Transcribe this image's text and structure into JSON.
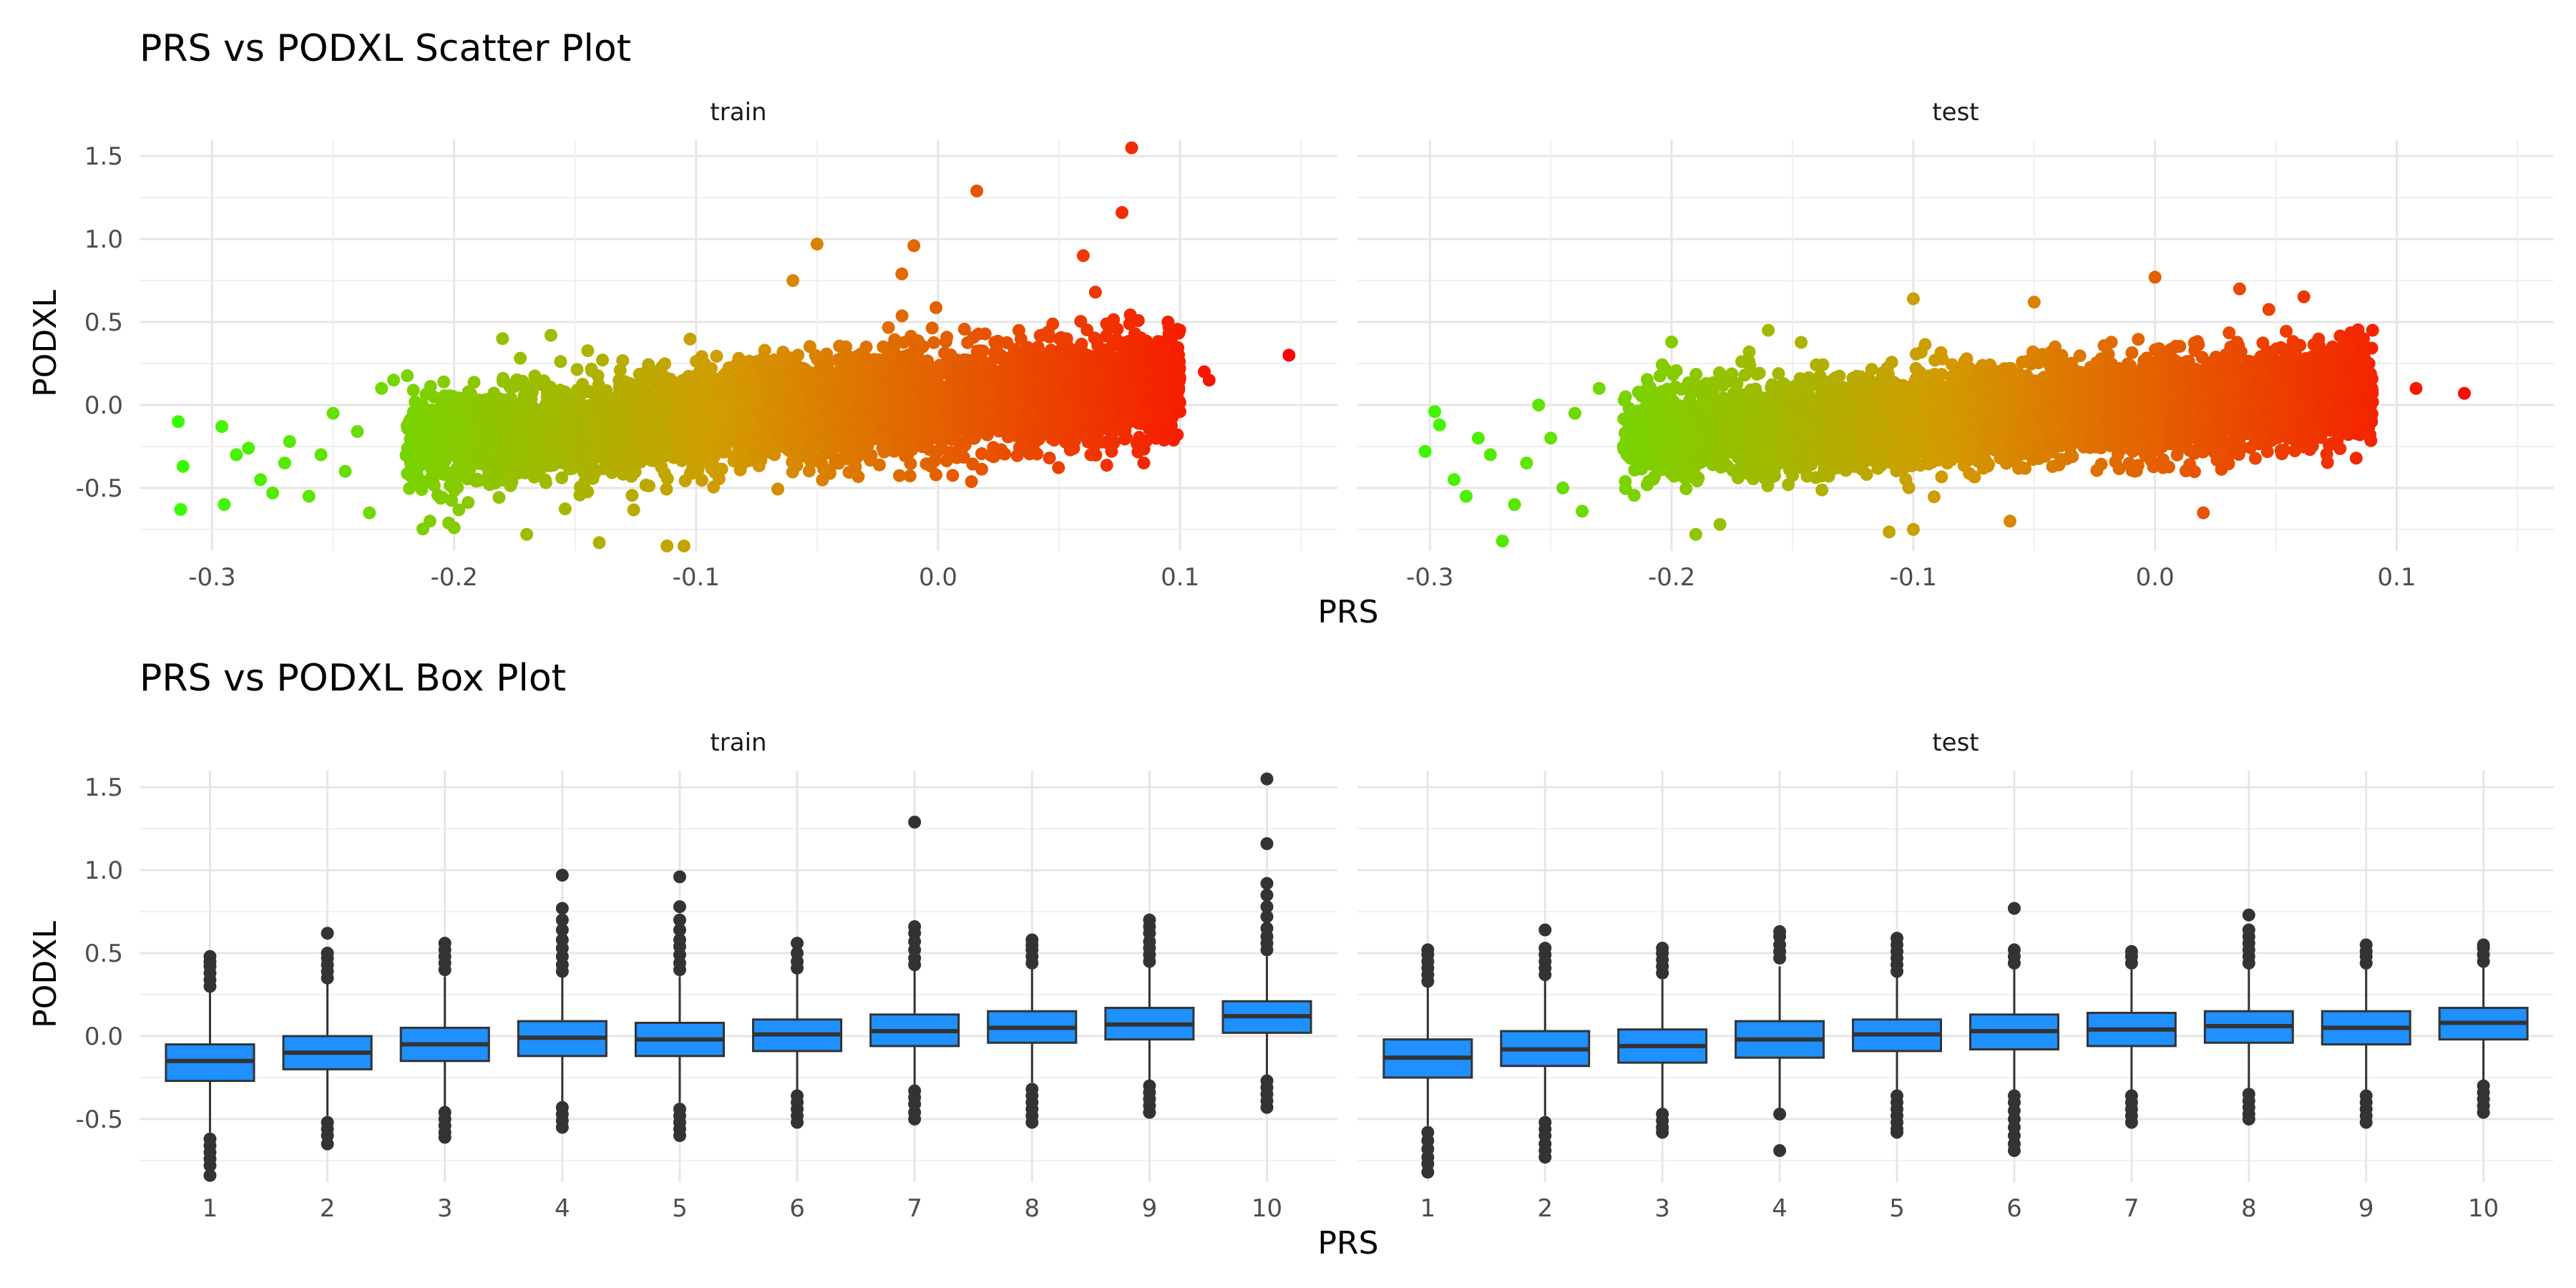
{
  "chart_data": [
    {
      "type": "scatter",
      "title": "PRS vs PODXL Scatter Plot",
      "xlabel": "PRS",
      "ylabel": "PODXL",
      "facets": [
        "train",
        "test"
      ],
      "xlim": [
        -0.33,
        0.165
      ],
      "ylim": [
        -0.88,
        1.6
      ],
      "x_ticks": [
        -0.3,
        -0.2,
        -0.1,
        0.0,
        0.1
      ],
      "x_tick_labels": [
        "-0.3",
        "-0.2",
        "-0.1",
        "0.0",
        "0.1"
      ],
      "y_ticks": [
        -0.5,
        0.0,
        0.5,
        1.0,
        1.5
      ],
      "y_tick_labels": [
        "-0.5",
        "0.0",
        "0.5",
        "1.0",
        "1.5"
      ],
      "grid": true,
      "legend": "none",
      "color_gradient": {
        "low": "#33ff00",
        "mid": "#d39a00",
        "high": "#ff0000",
        "range": [
          -0.32,
          0.145
        ]
      },
      "bulk": {
        "train": {
          "n": 5000,
          "x_range": [
            -0.22,
            0.1
          ],
          "trend_slope": 1.15,
          "trend_at_zero": 0.02,
          "sd": 0.15
        },
        "test": {
          "n": 5000,
          "x_range": [
            -0.22,
            0.09
          ],
          "trend_slope": 0.85,
          "trend_at_zero": 0.0,
          "sd": 0.14
        }
      },
      "series": [
        {
          "facet": "train",
          "points": [
            [
              -0.314,
              -0.1
            ],
            [
              -0.312,
              -0.37
            ],
            [
              -0.313,
              -0.63
            ],
            [
              -0.296,
              -0.13
            ],
            [
              -0.295,
              -0.6
            ],
            [
              -0.29,
              -0.3
            ],
            [
              -0.285,
              -0.26
            ],
            [
              -0.28,
              -0.45
            ],
            [
              -0.275,
              -0.53
            ],
            [
              -0.27,
              -0.35
            ],
            [
              -0.268,
              -0.22
            ],
            [
              -0.26,
              -0.55
            ],
            [
              -0.255,
              -0.3
            ],
            [
              -0.25,
              -0.05
            ],
            [
              -0.245,
              -0.4
            ],
            [
              -0.24,
              -0.16
            ],
            [
              -0.235,
              -0.65
            ],
            [
              -0.23,
              0.1
            ],
            [
              -0.225,
              0.15
            ],
            [
              -0.21,
              -0.7
            ],
            [
              -0.2,
              -0.74
            ],
            [
              -0.18,
              0.4
            ],
            [
              -0.17,
              -0.78
            ],
            [
              -0.16,
              0.42
            ],
            [
              -0.14,
              -0.83
            ],
            [
              -0.112,
              -0.85
            ],
            [
              -0.105,
              -0.85
            ],
            [
              -0.06,
              0.75
            ],
            [
              -0.05,
              0.97
            ],
            [
              -0.015,
              0.79
            ],
            [
              -0.01,
              0.96
            ],
            [
              0.016,
              1.29
            ],
            [
              0.06,
              0.9
            ],
            [
              0.065,
              0.68
            ],
            [
              0.076,
              1.16
            ],
            [
              0.08,
              1.55
            ],
            [
              0.085,
              -0.35
            ],
            [
              0.095,
              0.5
            ],
            [
              0.11,
              0.2
            ],
            [
              0.112,
              0.15
            ],
            [
              0.145,
              0.3
            ]
          ]
        },
        {
          "facet": "test",
          "points": [
            [
              -0.302,
              -0.28
            ],
            [
              -0.298,
              -0.04
            ],
            [
              -0.296,
              -0.12
            ],
            [
              -0.29,
              -0.45
            ],
            [
              -0.285,
              -0.55
            ],
            [
              -0.28,
              -0.2
            ],
            [
              -0.275,
              -0.3
            ],
            [
              -0.27,
              -0.82
            ],
            [
              -0.265,
              -0.6
            ],
            [
              -0.26,
              -0.35
            ],
            [
              -0.255,
              0.0
            ],
            [
              -0.25,
              -0.2
            ],
            [
              -0.245,
              -0.5
            ],
            [
              -0.24,
              -0.05
            ],
            [
              -0.237,
              -0.64
            ],
            [
              -0.23,
              0.1
            ],
            [
              -0.22,
              -0.25
            ],
            [
              -0.2,
              0.38
            ],
            [
              -0.19,
              -0.78
            ],
            [
              -0.18,
              -0.72
            ],
            [
              -0.16,
              0.45
            ],
            [
              -0.1,
              0.64
            ],
            [
              -0.1,
              -0.75
            ],
            [
              -0.05,
              0.62
            ],
            [
              -0.06,
              -0.7
            ],
            [
              0.0,
              0.77
            ],
            [
              0.02,
              -0.65
            ],
            [
              0.035,
              0.7
            ],
            [
              0.09,
              0.45
            ],
            [
              0.108,
              0.1
            ],
            [
              0.128,
              0.07
            ]
          ]
        }
      ]
    },
    {
      "type": "box",
      "title": "PRS vs PODXL Box Plot",
      "xlabel": "PRS",
      "ylabel": "PODXL",
      "facets": [
        "train",
        "test"
      ],
      "categories": [
        "1",
        "2",
        "3",
        "4",
        "5",
        "6",
        "7",
        "8",
        "9",
        "10"
      ],
      "ylim": [
        -0.88,
        1.6
      ],
      "y_ticks": [
        -0.5,
        0.0,
        0.5,
        1.0,
        1.5
      ],
      "y_tick_labels": [
        "-0.5",
        "0.0",
        "0.5",
        "1.0",
        "1.5"
      ],
      "grid": true,
      "legend": "none",
      "box_color": "#1e90ff",
      "series": [
        {
          "facet": "train",
          "boxes": [
            {
              "q1": -0.27,
              "median": -0.15,
              "q3": -0.05,
              "lower": -0.58,
              "upper": 0.28,
              "outliers": [
                0.3,
                0.34,
                0.38,
                0.42,
                0.45,
                0.48,
                -0.62,
                -0.66,
                -0.7,
                -0.74,
                -0.78,
                -0.84
              ]
            },
            {
              "q1": -0.2,
              "median": -0.1,
              "q3": 0.0,
              "lower": -0.48,
              "upper": 0.32,
              "outliers": [
                0.35,
                0.39,
                0.43,
                0.47,
                0.5,
                0.62,
                -0.52,
                -0.56,
                -0.6,
                -0.65
              ]
            },
            {
              "q1": -0.15,
              "median": -0.05,
              "q3": 0.05,
              "lower": -0.43,
              "upper": 0.36,
              "outliers": [
                0.4,
                0.44,
                0.48,
                0.52,
                0.56,
                -0.46,
                -0.5,
                -0.54,
                -0.58,
                -0.61
              ]
            },
            {
              "q1": -0.12,
              "median": -0.01,
              "q3": 0.09,
              "lower": -0.4,
              "upper": 0.36,
              "outliers": [
                0.39,
                0.43,
                0.48,
                0.53,
                0.58,
                0.64,
                0.7,
                0.77,
                0.97,
                -0.43,
                -0.47,
                -0.51,
                -0.55
              ]
            },
            {
              "q1": -0.12,
              "median": -0.02,
              "q3": 0.08,
              "lower": -0.4,
              "upper": 0.36,
              "outliers": [
                0.4,
                0.44,
                0.49,
                0.54,
                0.58,
                0.64,
                0.7,
                0.78,
                0.96,
                -0.44,
                -0.48,
                -0.52,
                -0.56,
                -0.6
              ]
            },
            {
              "q1": -0.09,
              "median": 0.01,
              "q3": 0.1,
              "lower": -0.33,
              "upper": 0.38,
              "outliers": [
                0.41,
                0.45,
                0.5,
                0.56,
                -0.36,
                -0.4,
                -0.44,
                -0.48,
                -0.52
              ]
            },
            {
              "q1": -0.06,
              "median": 0.03,
              "q3": 0.13,
              "lower": -0.3,
              "upper": 0.4,
              "outliers": [
                0.43,
                0.47,
                0.52,
                0.57,
                0.62,
                0.66,
                1.29,
                -0.33,
                -0.37,
                -0.41,
                -0.46,
                -0.5
              ]
            },
            {
              "q1": -0.04,
              "median": 0.05,
              "q3": 0.15,
              "lower": -0.28,
              "upper": 0.41,
              "outliers": [
                0.44,
                0.48,
                0.52,
                0.55,
                0.58,
                -0.32,
                -0.36,
                -0.4,
                -0.44,
                -0.48,
                -0.52
              ]
            },
            {
              "q1": -0.02,
              "median": 0.07,
              "q3": 0.17,
              "lower": -0.27,
              "upper": 0.42,
              "outliers": [
                0.45,
                0.49,
                0.53,
                0.57,
                0.62,
                0.66,
                0.7,
                -0.3,
                -0.34,
                -0.38,
                -0.42,
                -0.46
              ]
            },
            {
              "q1": 0.02,
              "median": 0.12,
              "q3": 0.21,
              "lower": -0.25,
              "upper": 0.48,
              "outliers": [
                0.52,
                0.56,
                0.6,
                0.65,
                0.72,
                0.78,
                0.85,
                0.92,
                1.16,
                1.55,
                -0.27,
                -0.31,
                -0.35,
                -0.39,
                -0.43
              ]
            }
          ]
        },
        {
          "facet": "test",
          "boxes": [
            {
              "q1": -0.25,
              "median": -0.13,
              "q3": -0.02,
              "lower": -0.54,
              "upper": 0.3,
              "outliers": [
                0.33,
                0.37,
                0.41,
                0.45,
                0.49,
                0.52,
                -0.58,
                -0.63,
                -0.68,
                -0.73,
                -0.77,
                -0.82
              ]
            },
            {
              "q1": -0.18,
              "median": -0.08,
              "q3": 0.03,
              "lower": -0.48,
              "upper": 0.34,
              "outliers": [
                0.37,
                0.41,
                0.45,
                0.49,
                0.53,
                0.64,
                -0.52,
                -0.56,
                -0.6,
                -0.65,
                -0.69,
                -0.73
              ]
            },
            {
              "q1": -0.16,
              "median": -0.06,
              "q3": 0.04,
              "lower": -0.44,
              "upper": 0.34,
              "outliers": [
                0.38,
                0.42,
                0.46,
                0.5,
                0.53,
                -0.47,
                -0.51,
                -0.55,
                -0.58
              ]
            },
            {
              "q1": -0.13,
              "median": -0.02,
              "q3": 0.09,
              "lower": -0.45,
              "upper": 0.42,
              "outliers": [
                0.47,
                0.51,
                0.55,
                0.6,
                0.63,
                -0.47,
                -0.69
              ]
            },
            {
              "q1": -0.09,
              "median": 0.01,
              "q3": 0.1,
              "lower": -0.33,
              "upper": 0.36,
              "outliers": [
                0.39,
                0.43,
                0.47,
                0.51,
                0.55,
                0.59,
                -0.36,
                -0.4,
                -0.44,
                -0.48,
                -0.52,
                -0.56,
                -0.58
              ]
            },
            {
              "q1": -0.08,
              "median": 0.03,
              "q3": 0.13,
              "lower": -0.33,
              "upper": 0.41,
              "outliers": [
                0.44,
                0.48,
                0.52,
                0.77,
                -0.36,
                -0.4,
                -0.45,
                -0.5,
                -0.55,
                -0.6,
                -0.65,
                -0.69
              ]
            },
            {
              "q1": -0.06,
              "median": 0.04,
              "q3": 0.14,
              "lower": -0.33,
              "upper": 0.41,
              "outliers": [
                0.44,
                0.48,
                0.51,
                -0.36,
                -0.4,
                -0.44,
                -0.48,
                -0.52
              ]
            },
            {
              "q1": -0.04,
              "median": 0.06,
              "q3": 0.15,
              "lower": -0.32,
              "upper": 0.41,
              "outliers": [
                0.44,
                0.48,
                0.52,
                0.56,
                0.6,
                0.64,
                0.73,
                -0.35,
                -0.39,
                -0.43,
                -0.47,
                -0.5
              ]
            },
            {
              "q1": -0.05,
              "median": 0.05,
              "q3": 0.15,
              "lower": -0.33,
              "upper": 0.41,
              "outliers": [
                0.44,
                0.48,
                0.51,
                0.55,
                -0.36,
                -0.4,
                -0.44,
                -0.48,
                -0.52
              ]
            },
            {
              "q1": -0.02,
              "median": 0.08,
              "q3": 0.17,
              "lower": -0.28,
              "upper": 0.42,
              "outliers": [
                0.45,
                0.49,
                0.53,
                0.55,
                -0.3,
                -0.34,
                -0.38,
                -0.42,
                -0.46
              ]
            }
          ]
        }
      ]
    }
  ]
}
